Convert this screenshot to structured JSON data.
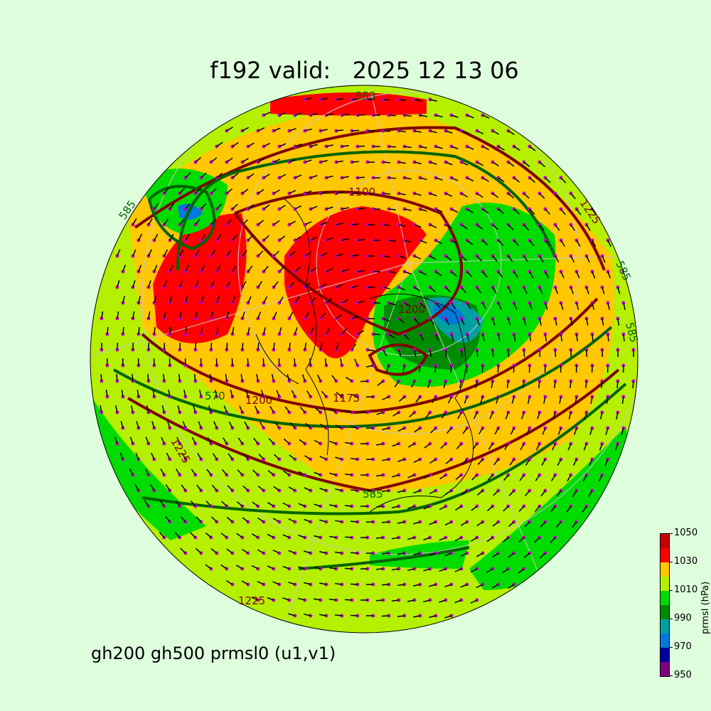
{
  "title": "f192 valid:   2025 12 13 06",
  "subtitle": "gh200 gh500 prmsl0 (u1,v1)",
  "colorbar": {
    "label": "prmsl (hPa)",
    "ticks": [
      "950",
      "970",
      "990",
      "1010",
      "1030",
      "1050"
    ],
    "colors": [
      "#7f007f",
      "#0000a0",
      "#0078dc",
      "#00a0a0",
      "#008c00",
      "#00dc00",
      "#b4f000",
      "#ffc800",
      "#ff0000",
      "#c80000"
    ]
  },
  "contour_labels": {
    "gh200": [
      "1100",
      "1200",
      "1175",
      "1225",
      "1225",
      "1200",
      "1225"
    ],
    "gh500": [
      "585",
      "570",
      "585",
      "555",
      "585",
      "585"
    ]
  },
  "colors": {
    "gh200": "#800000",
    "gh500": "#006400",
    "wind_dots": "#c800c8",
    "background": "#ddfddd"
  }
}
